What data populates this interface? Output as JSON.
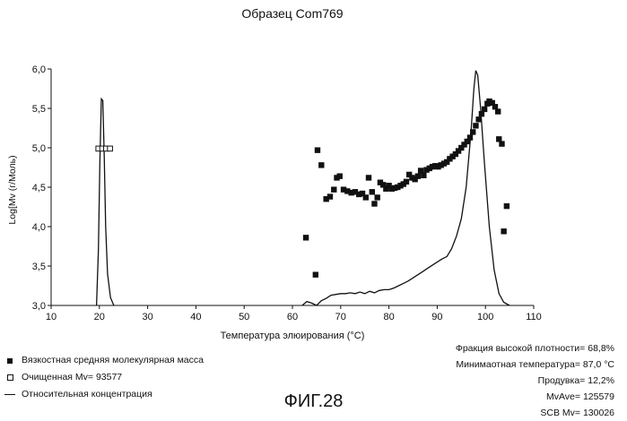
{
  "chart_data": {
    "type": "scatter",
    "title": "Образец Com769",
    "xlabel": "Температура элюирования (°C)",
    "ylabel": "Log[Mv (г/Моль)",
    "xlim": [
      10,
      110
    ],
    "ylim": [
      3.0,
      6.0
    ],
    "x_ticks": [
      "10",
      "20",
      "30",
      "40",
      "50",
      "60",
      "70",
      "80",
      "90",
      "100",
      "110"
    ],
    "y_ticks": [
      "3,0",
      "3,5",
      "4,0",
      "4,5",
      "5,0",
      "5,5",
      "6,0"
    ],
    "series": [
      {
        "name": "Вязкостная средняя молекулярная масса",
        "marker": "filled-square",
        "points": [
          [
            62.8,
            3.86
          ],
          [
            64.8,
            3.39
          ],
          [
            65.2,
            4.97
          ],
          [
            66.0,
            4.78
          ],
          [
            67.0,
            4.35
          ],
          [
            67.8,
            4.38
          ],
          [
            68.6,
            4.47
          ],
          [
            69.2,
            4.62
          ],
          [
            69.8,
            4.64
          ],
          [
            70.6,
            4.47
          ],
          [
            71.4,
            4.45
          ],
          [
            72.2,
            4.43
          ],
          [
            73.0,
            4.44
          ],
          [
            73.8,
            4.41
          ],
          [
            74.5,
            4.42
          ],
          [
            75.2,
            4.37
          ],
          [
            75.8,
            4.62
          ],
          [
            76.5,
            4.44
          ],
          [
            77.0,
            4.29
          ],
          [
            77.6,
            4.37
          ],
          [
            78.2,
            4.56
          ],
          [
            78.8,
            4.53
          ],
          [
            79.4,
            4.48
          ],
          [
            80.0,
            4.52
          ],
          [
            80.6,
            4.48
          ],
          [
            81.2,
            4.49
          ],
          [
            81.8,
            4.5
          ],
          [
            82.4,
            4.52
          ],
          [
            83.0,
            4.54
          ],
          [
            83.6,
            4.57
          ],
          [
            84.2,
            4.66
          ],
          [
            84.8,
            4.62
          ],
          [
            85.4,
            4.6
          ],
          [
            86.0,
            4.64
          ],
          [
            86.6,
            4.71
          ],
          [
            87.2,
            4.65
          ],
          [
            87.8,
            4.72
          ],
          [
            88.4,
            4.74
          ],
          [
            89.0,
            4.76
          ],
          [
            89.6,
            4.77
          ],
          [
            90.2,
            4.76
          ],
          [
            90.8,
            4.78
          ],
          [
            91.4,
            4.8
          ],
          [
            92.0,
            4.82
          ],
          [
            92.6,
            4.86
          ],
          [
            93.2,
            4.89
          ],
          [
            93.8,
            4.92
          ],
          [
            94.4,
            4.96
          ],
          [
            95.0,
            5.0
          ],
          [
            95.6,
            5.04
          ],
          [
            96.2,
            5.08
          ],
          [
            96.8,
            5.13
          ],
          [
            97.4,
            5.2
          ],
          [
            98.0,
            5.28
          ],
          [
            98.6,
            5.36
          ],
          [
            99.2,
            5.43
          ],
          [
            99.8,
            5.49
          ],
          [
            100.4,
            5.56
          ],
          [
            100.8,
            5.59
          ],
          [
            101.4,
            5.57
          ],
          [
            102.0,
            5.52
          ],
          [
            102.6,
            5.46
          ],
          [
            102.8,
            5.11
          ],
          [
            103.4,
            5.05
          ],
          [
            103.8,
            3.94
          ],
          [
            104.4,
            4.26
          ]
        ]
      },
      {
        "name": "Очищенная Mv= 93577",
        "marker": "open-square",
        "points": [
          [
            19.8,
            4.99
          ],
          [
            20.6,
            4.99
          ],
          [
            21.4,
            4.99
          ],
          [
            22.2,
            4.99
          ]
        ]
      },
      {
        "name": "Относительная концентрация",
        "marker": "line",
        "points": [
          [
            19.4,
            3.0
          ],
          [
            19.8,
            3.7
          ],
          [
            20.1,
            4.8
          ],
          [
            20.4,
            5.62
          ],
          [
            20.7,
            5.6
          ],
          [
            21.0,
            4.9
          ],
          [
            21.3,
            4.0
          ],
          [
            21.7,
            3.4
          ],
          [
            22.3,
            3.1
          ],
          [
            23.0,
            3.0
          ],
          [
            62.0,
            3.0
          ],
          [
            63.0,
            3.05
          ],
          [
            64.0,
            3.03
          ],
          [
            65.0,
            3.0
          ],
          [
            66.0,
            3.06
          ],
          [
            67.0,
            3.09
          ],
          [
            68.0,
            3.13
          ],
          [
            69.0,
            3.14
          ],
          [
            70.0,
            3.15
          ],
          [
            71.0,
            3.15
          ],
          [
            72.0,
            3.16
          ],
          [
            73.0,
            3.15
          ],
          [
            74.0,
            3.17
          ],
          [
            75.0,
            3.15
          ],
          [
            76.0,
            3.18
          ],
          [
            77.0,
            3.16
          ],
          [
            78.0,
            3.19
          ],
          [
            79.0,
            3.2
          ],
          [
            80.0,
            3.2
          ],
          [
            81.0,
            3.22
          ],
          [
            82.0,
            3.25
          ],
          [
            83.0,
            3.28
          ],
          [
            84.0,
            3.31
          ],
          [
            85.0,
            3.35
          ],
          [
            86.0,
            3.39
          ],
          [
            87.0,
            3.43
          ],
          [
            88.0,
            3.47
          ],
          [
            89.0,
            3.51
          ],
          [
            90.0,
            3.55
          ],
          [
            91.0,
            3.59
          ],
          [
            92.0,
            3.62
          ],
          [
            93.0,
            3.72
          ],
          [
            94.0,
            3.88
          ],
          [
            95.0,
            4.1
          ],
          [
            96.0,
            4.5
          ],
          [
            97.0,
            5.2
          ],
          [
            97.6,
            5.75
          ],
          [
            98.0,
            5.98
          ],
          [
            98.4,
            5.92
          ],
          [
            99.0,
            5.5
          ],
          [
            99.8,
            4.8
          ],
          [
            100.8,
            4.0
          ],
          [
            101.8,
            3.45
          ],
          [
            102.8,
            3.15
          ],
          [
            103.8,
            3.04
          ],
          [
            105.0,
            3.0
          ]
        ]
      }
    ]
  },
  "figure_label": "ФИГ.28",
  "stats": [
    "Фракция высокой плотности= 68,8%",
    "Минимаотная температура= 87,0 °C",
    "Продувка= 12,2%",
    "MvAve= 125579",
    "SCB Mv= 130026"
  ]
}
